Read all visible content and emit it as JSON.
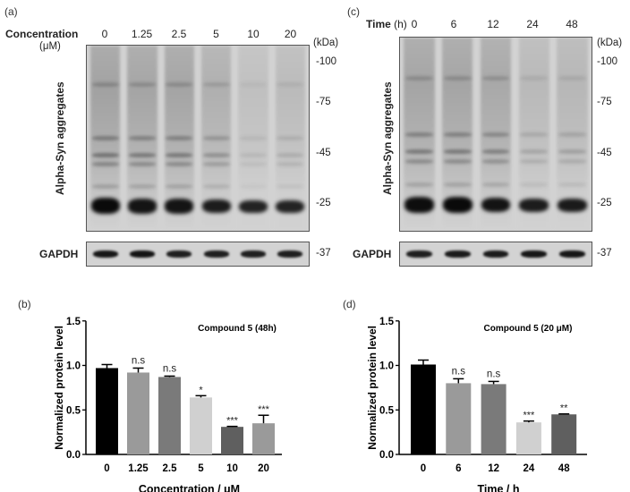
{
  "figure": {
    "panels": {
      "a": {
        "label": "(a)",
        "header_label": "Concentration",
        "header_unit": "(μM)",
        "lanes": [
          "0",
          "1.25",
          "2.5",
          "5",
          "10",
          "20"
        ],
        "ylabel": "Alpha-Syn aggregates",
        "loading_control": "GAPDH",
        "kda_unit": "(kDa)",
        "markers": [
          "-100",
          "-75",
          "-45",
          "-25"
        ],
        "loading_marker": "-37",
        "band_intensity_25kDa": [
          1.0,
          0.82,
          0.82,
          0.7,
          0.6,
          0.6
        ],
        "band_intensity_gapdh": [
          0.9,
          0.95,
          0.8,
          0.8,
          0.8,
          0.8
        ],
        "smear_intensity": [
          0.55,
          0.5,
          0.5,
          0.35,
          0.12,
          0.18
        ]
      },
      "c": {
        "label": "(c)",
        "header_label": "Time",
        "header_unit": "(h)",
        "lanes": [
          "0",
          "6",
          "12",
          "24",
          "48"
        ],
        "ylabel": "Alpha-Syn aggregates",
        "loading_control": "GAPDH",
        "kda_unit": "(kDa)",
        "markers": [
          "-100",
          "-75",
          "-45",
          "-25"
        ],
        "loading_marker": "-37",
        "band_intensity_25kDa": [
          0.95,
          1.0,
          0.85,
          0.7,
          0.72
        ],
        "band_intensity_gapdh": [
          0.8,
          0.85,
          0.85,
          0.9,
          0.92
        ],
        "smear_intensity": [
          0.5,
          0.5,
          0.45,
          0.22,
          0.25
        ]
      },
      "b": {
        "label": "(b)"
      },
      "d": {
        "label": "(d)"
      }
    }
  },
  "chart_data": [
    {
      "type": "bar",
      "panel": "(b)",
      "title": "Compound 5 (48h)",
      "xlabel": "Concentration / μM",
      "ylabel": "Normalized protein level",
      "categories": [
        "0",
        "1.25",
        "2.5",
        "5",
        "10",
        "20"
      ],
      "values": [
        0.97,
        0.92,
        0.87,
        0.64,
        0.31,
        0.35
      ],
      "errors": [
        0.04,
        0.05,
        0.01,
        0.02,
        0.005,
        0.09
      ],
      "significance": [
        "",
        "n.s",
        "n.s",
        "*",
        "***",
        "***"
      ],
      "colors": [
        "#000000",
        "#9a9a9a",
        "#7a7a7a",
        "#d0d0d0",
        "#5f5f5f",
        "#9a9a9a"
      ],
      "yticks": [
        "0.0",
        "0.5",
        "1.0",
        "1.5"
      ],
      "ylim": [
        0,
        1.5
      ],
      "grid": false,
      "legend": "none"
    },
    {
      "type": "bar",
      "panel": "(d)",
      "title": "Compound 5  (20 μM)",
      "xlabel": "Time / h",
      "ylabel": "Normalized protein level",
      "categories": [
        "0",
        "6",
        "12",
        "24",
        "48"
      ],
      "values": [
        1.01,
        0.8,
        0.79,
        0.36,
        0.45
      ],
      "errors": [
        0.05,
        0.05,
        0.03,
        0.015,
        0.005
      ],
      "significance": [
        "",
        "n.s",
        "n.s",
        "***",
        "**"
      ],
      "colors": [
        "#000000",
        "#9a9a9a",
        "#7a7a7a",
        "#d0d0d0",
        "#5f5f5f"
      ],
      "yticks": [
        "0.0",
        "0.5",
        "1.0",
        "1.5"
      ],
      "ylim": [
        0,
        1.5
      ],
      "grid": false,
      "legend": "none"
    }
  ]
}
